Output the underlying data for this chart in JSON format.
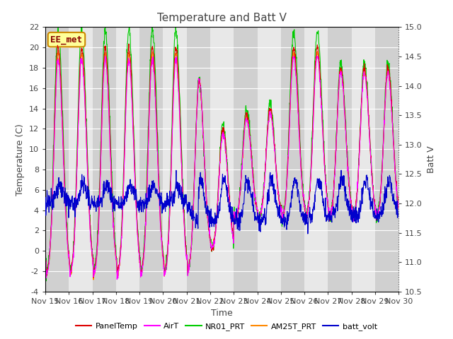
{
  "title": "Temperature and Batt V",
  "xlabel": "Time",
  "ylabel_left": "Temperature (C)",
  "ylabel_right": "Batt V",
  "annotation": "EE_met",
  "ylim_left": [
    -4,
    22
  ],
  "ylim_right": [
    10.5,
    15.0
  ],
  "xlim": [
    0,
    360
  ],
  "xtick_labels": [
    "Nov 15",
    "Nov 16",
    "Nov 17",
    "Nov 18",
    "Nov 19",
    "Nov 20",
    "Nov 21",
    "Nov 22",
    "Nov 23",
    "Nov 24",
    "Nov 25",
    "Nov 26",
    "Nov 27",
    "Nov 28",
    "Nov 29",
    "Nov 30"
  ],
  "series_colors": {
    "PanelTemp": "#dd0000",
    "AirT": "#ff00ff",
    "NR01_PRT": "#00cc00",
    "AM25T_PRT": "#ff8800",
    "batt_volt": "#0000cc"
  },
  "bg_color": "#e8e8e8",
  "plot_bg_color": "#e8e8e8",
  "band_color_dark": "#d0d0d0",
  "band_color_light": "#e8e8e8",
  "grid_color": "#ffffff",
  "title_color": "#444444",
  "tick_color": "#444444",
  "annotation_fg": "#880000",
  "annotation_bg": "#ffff99",
  "annotation_edge": "#cc8800"
}
